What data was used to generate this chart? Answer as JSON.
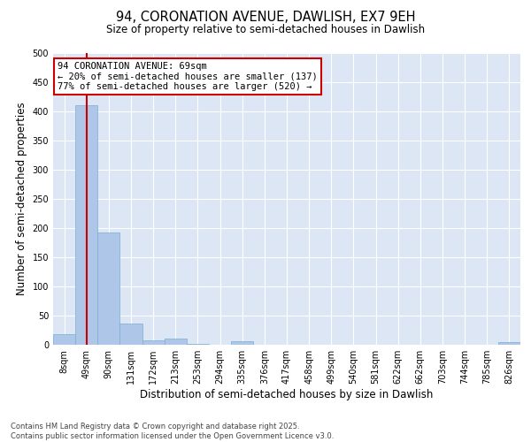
{
  "title1": "94, CORONATION AVENUE, DAWLISH, EX7 9EH",
  "title2": "Size of property relative to semi-detached houses in Dawlish",
  "xlabel": "Distribution of semi-detached houses by size in Dawlish",
  "ylabel": "Number of semi-detached properties",
  "categories": [
    "8sqm",
    "49sqm",
    "90sqm",
    "131sqm",
    "172sqm",
    "213sqm",
    "253sqm",
    "294sqm",
    "335sqm",
    "376sqm",
    "417sqm",
    "458sqm",
    "499sqm",
    "540sqm",
    "581sqm",
    "622sqm",
    "662sqm",
    "703sqm",
    "744sqm",
    "785sqm",
    "826sqm"
  ],
  "values": [
    18,
    410,
    193,
    36,
    7,
    10,
    2,
    0,
    6,
    0,
    0,
    0,
    0,
    0,
    0,
    0,
    0,
    0,
    0,
    0,
    5
  ],
  "bar_color": "#aec6e8",
  "bar_edge_color": "#7aadd4",
  "background_color": "#dce6f5",
  "grid_color": "#ffffff",
  "property_line_x": 1,
  "property_line_color": "#cc0000",
  "annotation_text": "94 CORONATION AVENUE: 69sqm\n← 20% of semi-detached houses are smaller (137)\n77% of semi-detached houses are larger (520) →",
  "annotation_box_color": "#cc0000",
  "ylim": [
    0,
    500
  ],
  "yticks": [
    0,
    50,
    100,
    150,
    200,
    250,
    300,
    350,
    400,
    450,
    500
  ],
  "footer": "Contains HM Land Registry data © Crown copyright and database right 2025.\nContains public sector information licensed under the Open Government Licence v3.0.",
  "title_fontsize": 10.5,
  "subtitle_fontsize": 8.5,
  "tick_fontsize": 7,
  "label_fontsize": 8.5,
  "footer_fontsize": 6,
  "ann_fontsize": 7.5
}
